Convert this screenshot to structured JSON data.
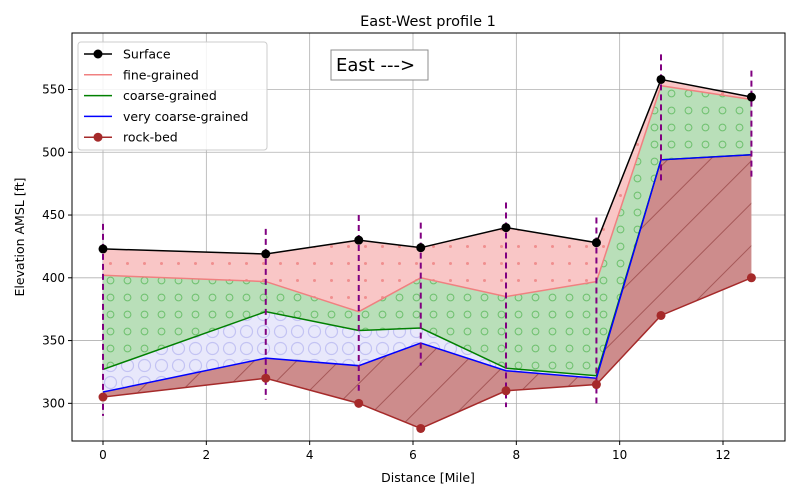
{
  "chart_data": {
    "type": "line",
    "title": "East-West profile 1",
    "xlabel": "Distance [Mile]",
    "ylabel": "Elevation AMSL [ft]",
    "annotation": "East --->",
    "xlim": [
      -0.6,
      13.2
    ],
    "ylim": [
      270,
      595
    ],
    "xticks": [
      0,
      2,
      4,
      6,
      8,
      10,
      12
    ],
    "yticks": [
      300,
      350,
      400,
      450,
      500,
      550
    ],
    "grid": true,
    "legend_position": "upper-left",
    "x": [
      0,
      3.15,
      4.95,
      6.15,
      7.8,
      9.55,
      10.8,
      12.55
    ],
    "series": [
      {
        "name": "Surface",
        "color": "#000000",
        "marker": true,
        "values": [
          423,
          419,
          430,
          424,
          440,
          428,
          558,
          544
        ]
      },
      {
        "name": "fine-grained",
        "color": "#f08080",
        "marker": false,
        "values": [
          402,
          397,
          373,
          400,
          385,
          397,
          553,
          542
        ]
      },
      {
        "name": "coarse-grained",
        "color": "#008000",
        "marker": false,
        "values": [
          327,
          373,
          358,
          360,
          328,
          322,
          494,
          498
        ]
      },
      {
        "name": "very coarse-grained",
        "color": "#0000ff",
        "marker": false,
        "values": [
          309,
          336,
          330,
          348,
          326,
          320,
          494,
          498
        ]
      },
      {
        "name": "rock-bed",
        "color": "#a52a2a",
        "marker": true,
        "values": [
          305,
          320,
          300,
          280,
          310,
          315,
          370,
          400
        ]
      }
    ],
    "boreholes": [
      {
        "x": 0,
        "top": 443,
        "bottom": 290
      },
      {
        "x": 3.15,
        "top": 439,
        "bottom": 303
      },
      {
        "x": 4.95,
        "top": 450,
        "bottom": 310
      },
      {
        "x": 6.15,
        "top": 444,
        "bottom": 330
      },
      {
        "x": 7.8,
        "top": 460,
        "bottom": 297
      },
      {
        "x": 9.55,
        "top": 448,
        "bottom": 298
      },
      {
        "x": 10.8,
        "top": 578,
        "bottom": 475
      },
      {
        "x": 12.55,
        "top": 565,
        "bottom": 478
      }
    ]
  }
}
